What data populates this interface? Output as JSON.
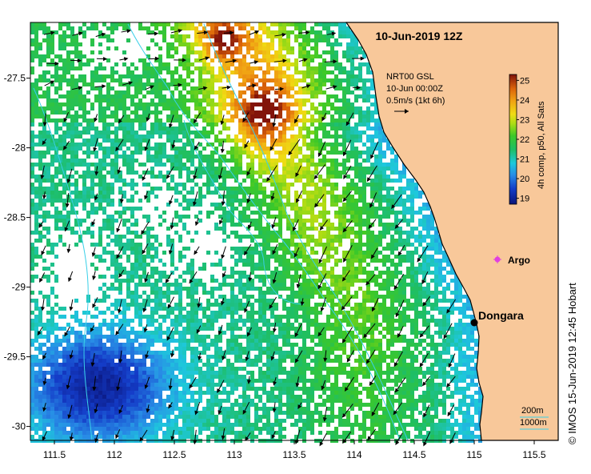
{
  "title": "10-Jun-2019 12Z",
  "product": {
    "line1": "NRT00 GSL",
    "line2": "10-Jun 00:00Z",
    "scale_label": "0.5m/s (1kt 6h)"
  },
  "colorbar": {
    "label": "4h comp, p50, All Sats",
    "ticks": [
      "19",
      "20",
      "21",
      "22",
      "23",
      "24",
      "25"
    ],
    "min": 18.7,
    "max": 25.3
  },
  "places": [
    {
      "name": "Argo",
      "lon": 115.08,
      "lat": -28.84
    },
    {
      "name": "Dongara",
      "lon": 114.93,
      "lat": -29.25
    }
  ],
  "depth_legend": [
    "200m",
    "1000m"
  ],
  "credit": "© IMOS 15-Jun-2019 12:45 Hobart",
  "axes": {
    "x_ticks": [
      "111.5",
      "112",
      "112.5",
      "113",
      "113.5",
      "114",
      "114.5",
      "115",
      "115.5"
    ],
    "y_ticks": [
      "-27.5",
      "-28",
      "-28.5",
      "-29",
      "-29.5",
      "-30"
    ],
    "lon_range": [
      111.3,
      115.7
    ],
    "lat_range": [
      -30.1,
      -27.1
    ]
  },
  "colors": {
    "land": "#f8c89a",
    "isobath": "#3ad0e8",
    "argo": "#e040e0"
  }
}
